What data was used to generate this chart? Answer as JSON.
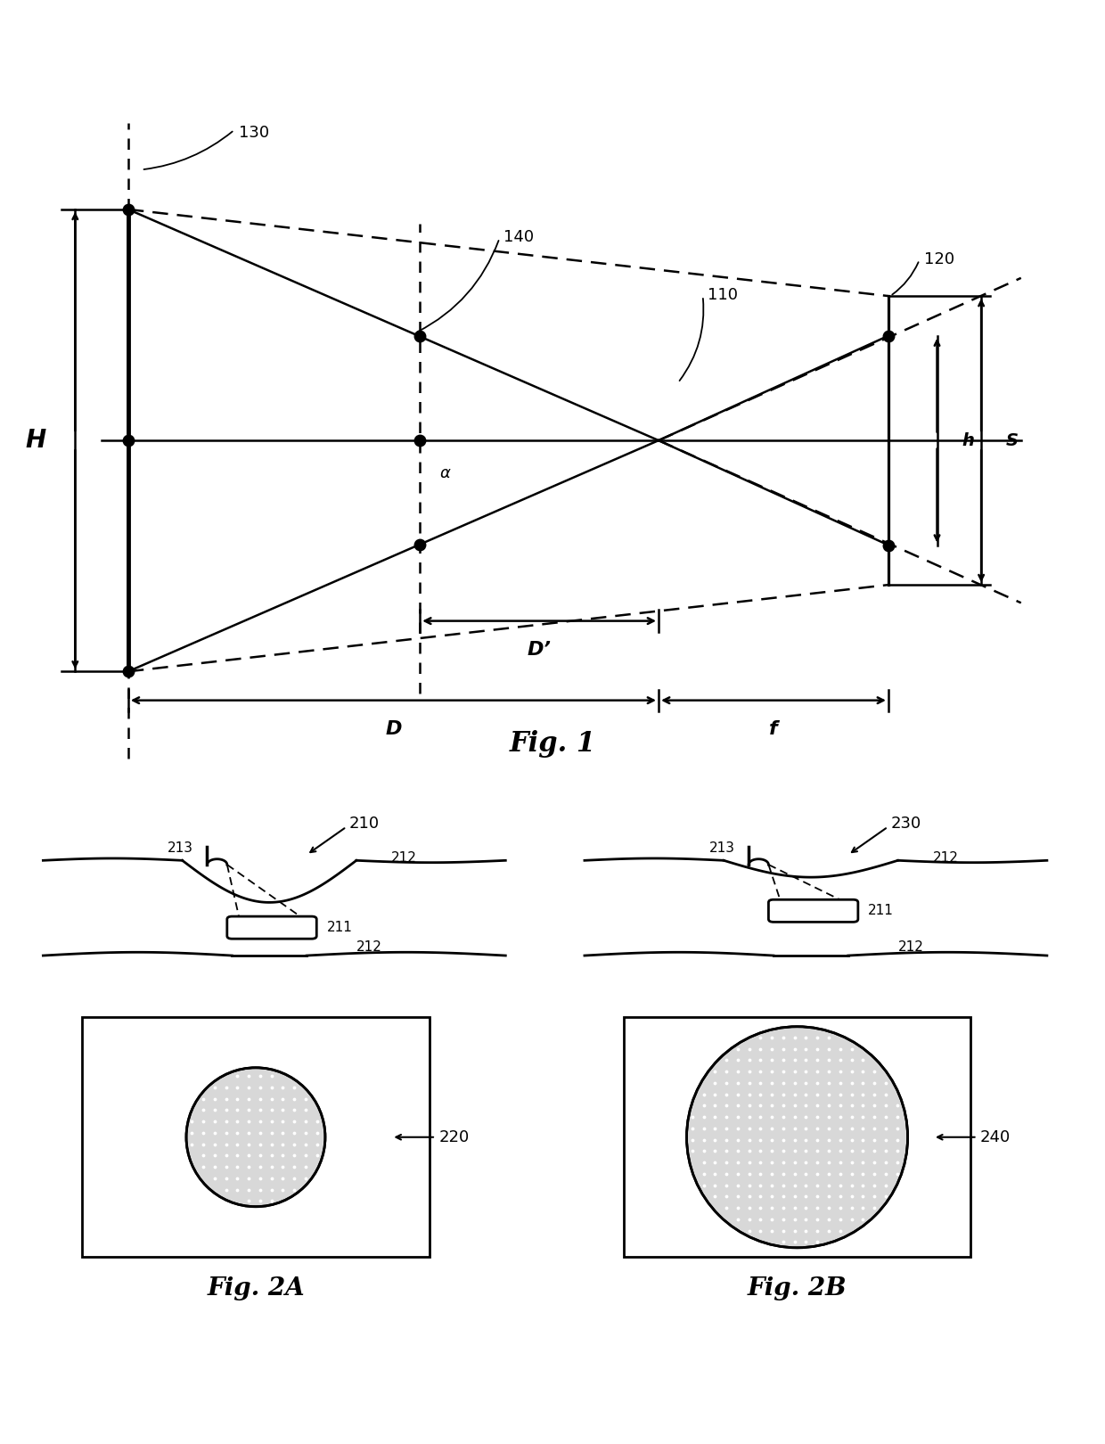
{
  "bg_color": "#ffffff",
  "line_color": "#000000",
  "fig1_title": "Fig. 1",
  "fig2a_title": "Fig. 2A",
  "fig2b_title": "Fig. 2B",
  "labels": {
    "H": "H",
    "h": "h",
    "S": "S",
    "D": "D",
    "Dprime": "D’",
    "f": "f",
    "alpha": "α",
    "n110": "110",
    "n120": "120",
    "n130": "130",
    "n140": "140",
    "n210": "210",
    "n211": "211",
    "n212": "212",
    "n213": "213",
    "n220": "220",
    "n230": "230",
    "n240": "240"
  }
}
